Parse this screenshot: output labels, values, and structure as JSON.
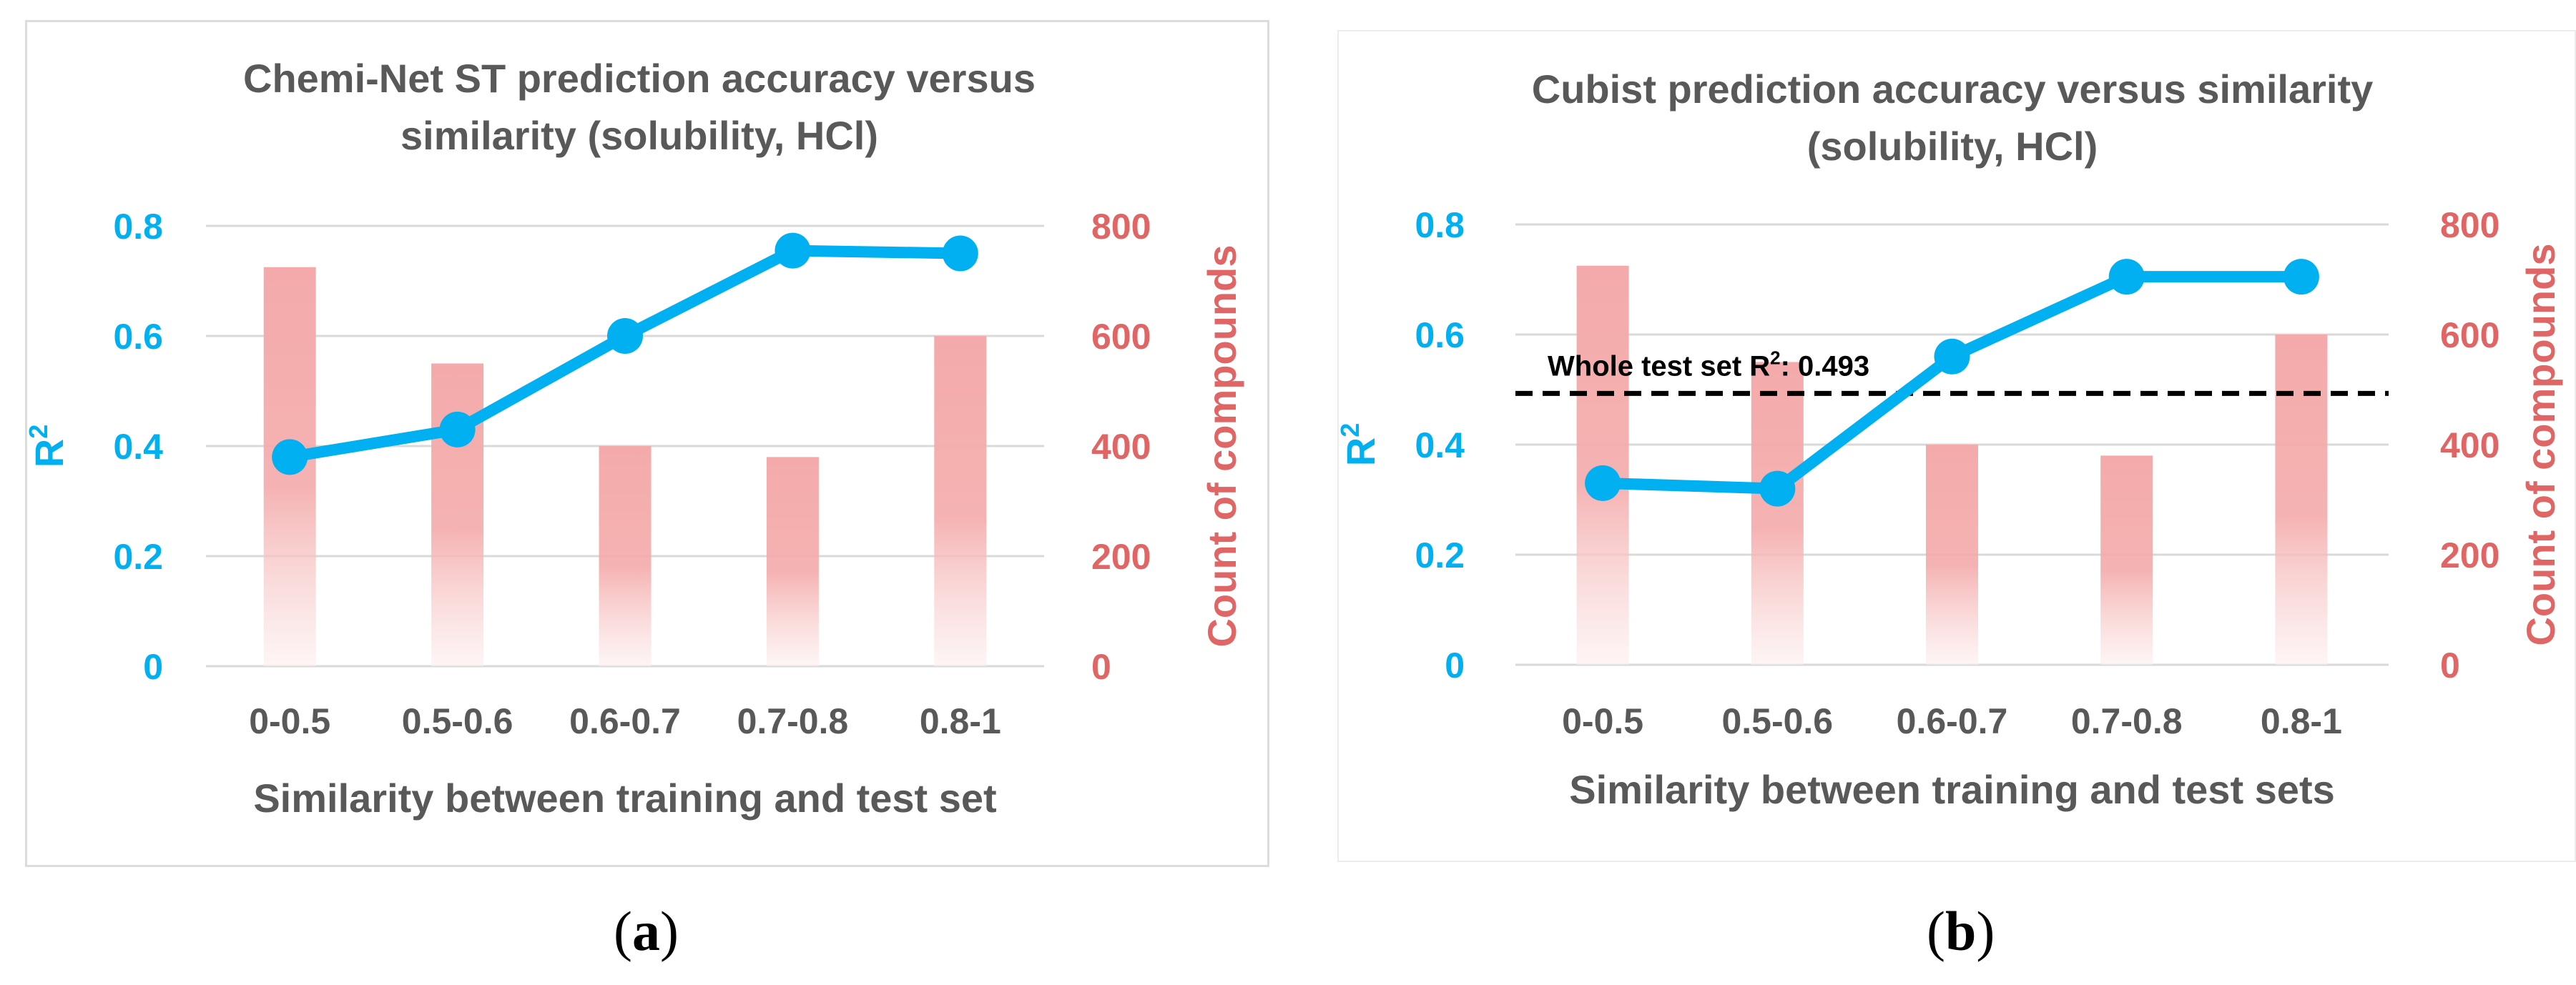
{
  "chart_data": [
    {
      "type": "bar+line",
      "panel_label": "a",
      "title_lines": [
        "Chemi-Net ST prediction accuracy versus",
        "similarity (solubility, HCl)"
      ],
      "xlabel": "Similarity between training and test set",
      "ylabel_left": "R",
      "ylabel_left_sup": "2",
      "ylabel_right": "Count of compounds",
      "categories": [
        "0-0.5",
        "0.5-0.6",
        "0.6-0.7",
        "0.7-0.8",
        "0.8-1"
      ],
      "ylim_left": [
        0,
        0.8
      ],
      "ylim_right": [
        0,
        800
      ],
      "yticks_left": [
        "0",
        "0.2",
        "0.4",
        "0.6",
        "0.8"
      ],
      "yticks_right": [
        "0",
        "200",
        "400",
        "600",
        "800"
      ],
      "bar_series": {
        "axis": "right",
        "values": [
          725,
          550,
          400,
          380,
          600
        ]
      },
      "line_series": {
        "axis": "left",
        "values": [
          0.38,
          0.43,
          0.6,
          0.755,
          0.75
        ]
      },
      "grid": true
    },
    {
      "type": "bar+line",
      "panel_label": "b",
      "title_lines": [
        "Cubist prediction accuracy versus similarity",
        "(solubility, HCl)"
      ],
      "xlabel": "Similarity between training and test sets",
      "ylabel_left": "R",
      "ylabel_left_sup": "2",
      "ylabel_right": "Count of compounds",
      "categories": [
        "0-0.5",
        "0.5-0.6",
        "0.6-0.7",
        "0.7-0.8",
        "0.8-1"
      ],
      "ylim_left": [
        0,
        0.8
      ],
      "ylim_right": [
        0,
        800
      ],
      "yticks_left": [
        "0",
        "0.2",
        "0.4",
        "0.6",
        "0.8"
      ],
      "yticks_right": [
        "0",
        "200",
        "400",
        "600",
        "800"
      ],
      "bar_series": {
        "axis": "right",
        "values": [
          725,
          550,
          400,
          380,
          600
        ]
      },
      "line_series": {
        "axis": "left",
        "values": [
          0.33,
          0.32,
          0.56,
          0.705,
          0.705
        ]
      },
      "reference_line": {
        "value": 0.493,
        "label_prefix": "Whole test set R",
        "label_sup": "2",
        "label_suffix": ": 0.493"
      },
      "grid": true
    }
  ],
  "colors": {
    "line": "#00b0f0",
    "left_axis": "#00b0f0",
    "right_axis": "#e06666",
    "bar_top": "#f4aaaa",
    "bar_bottom": "#fdeeee",
    "text": "#595959",
    "grid": "#d9d9d9",
    "ref_line": "#000000"
  }
}
